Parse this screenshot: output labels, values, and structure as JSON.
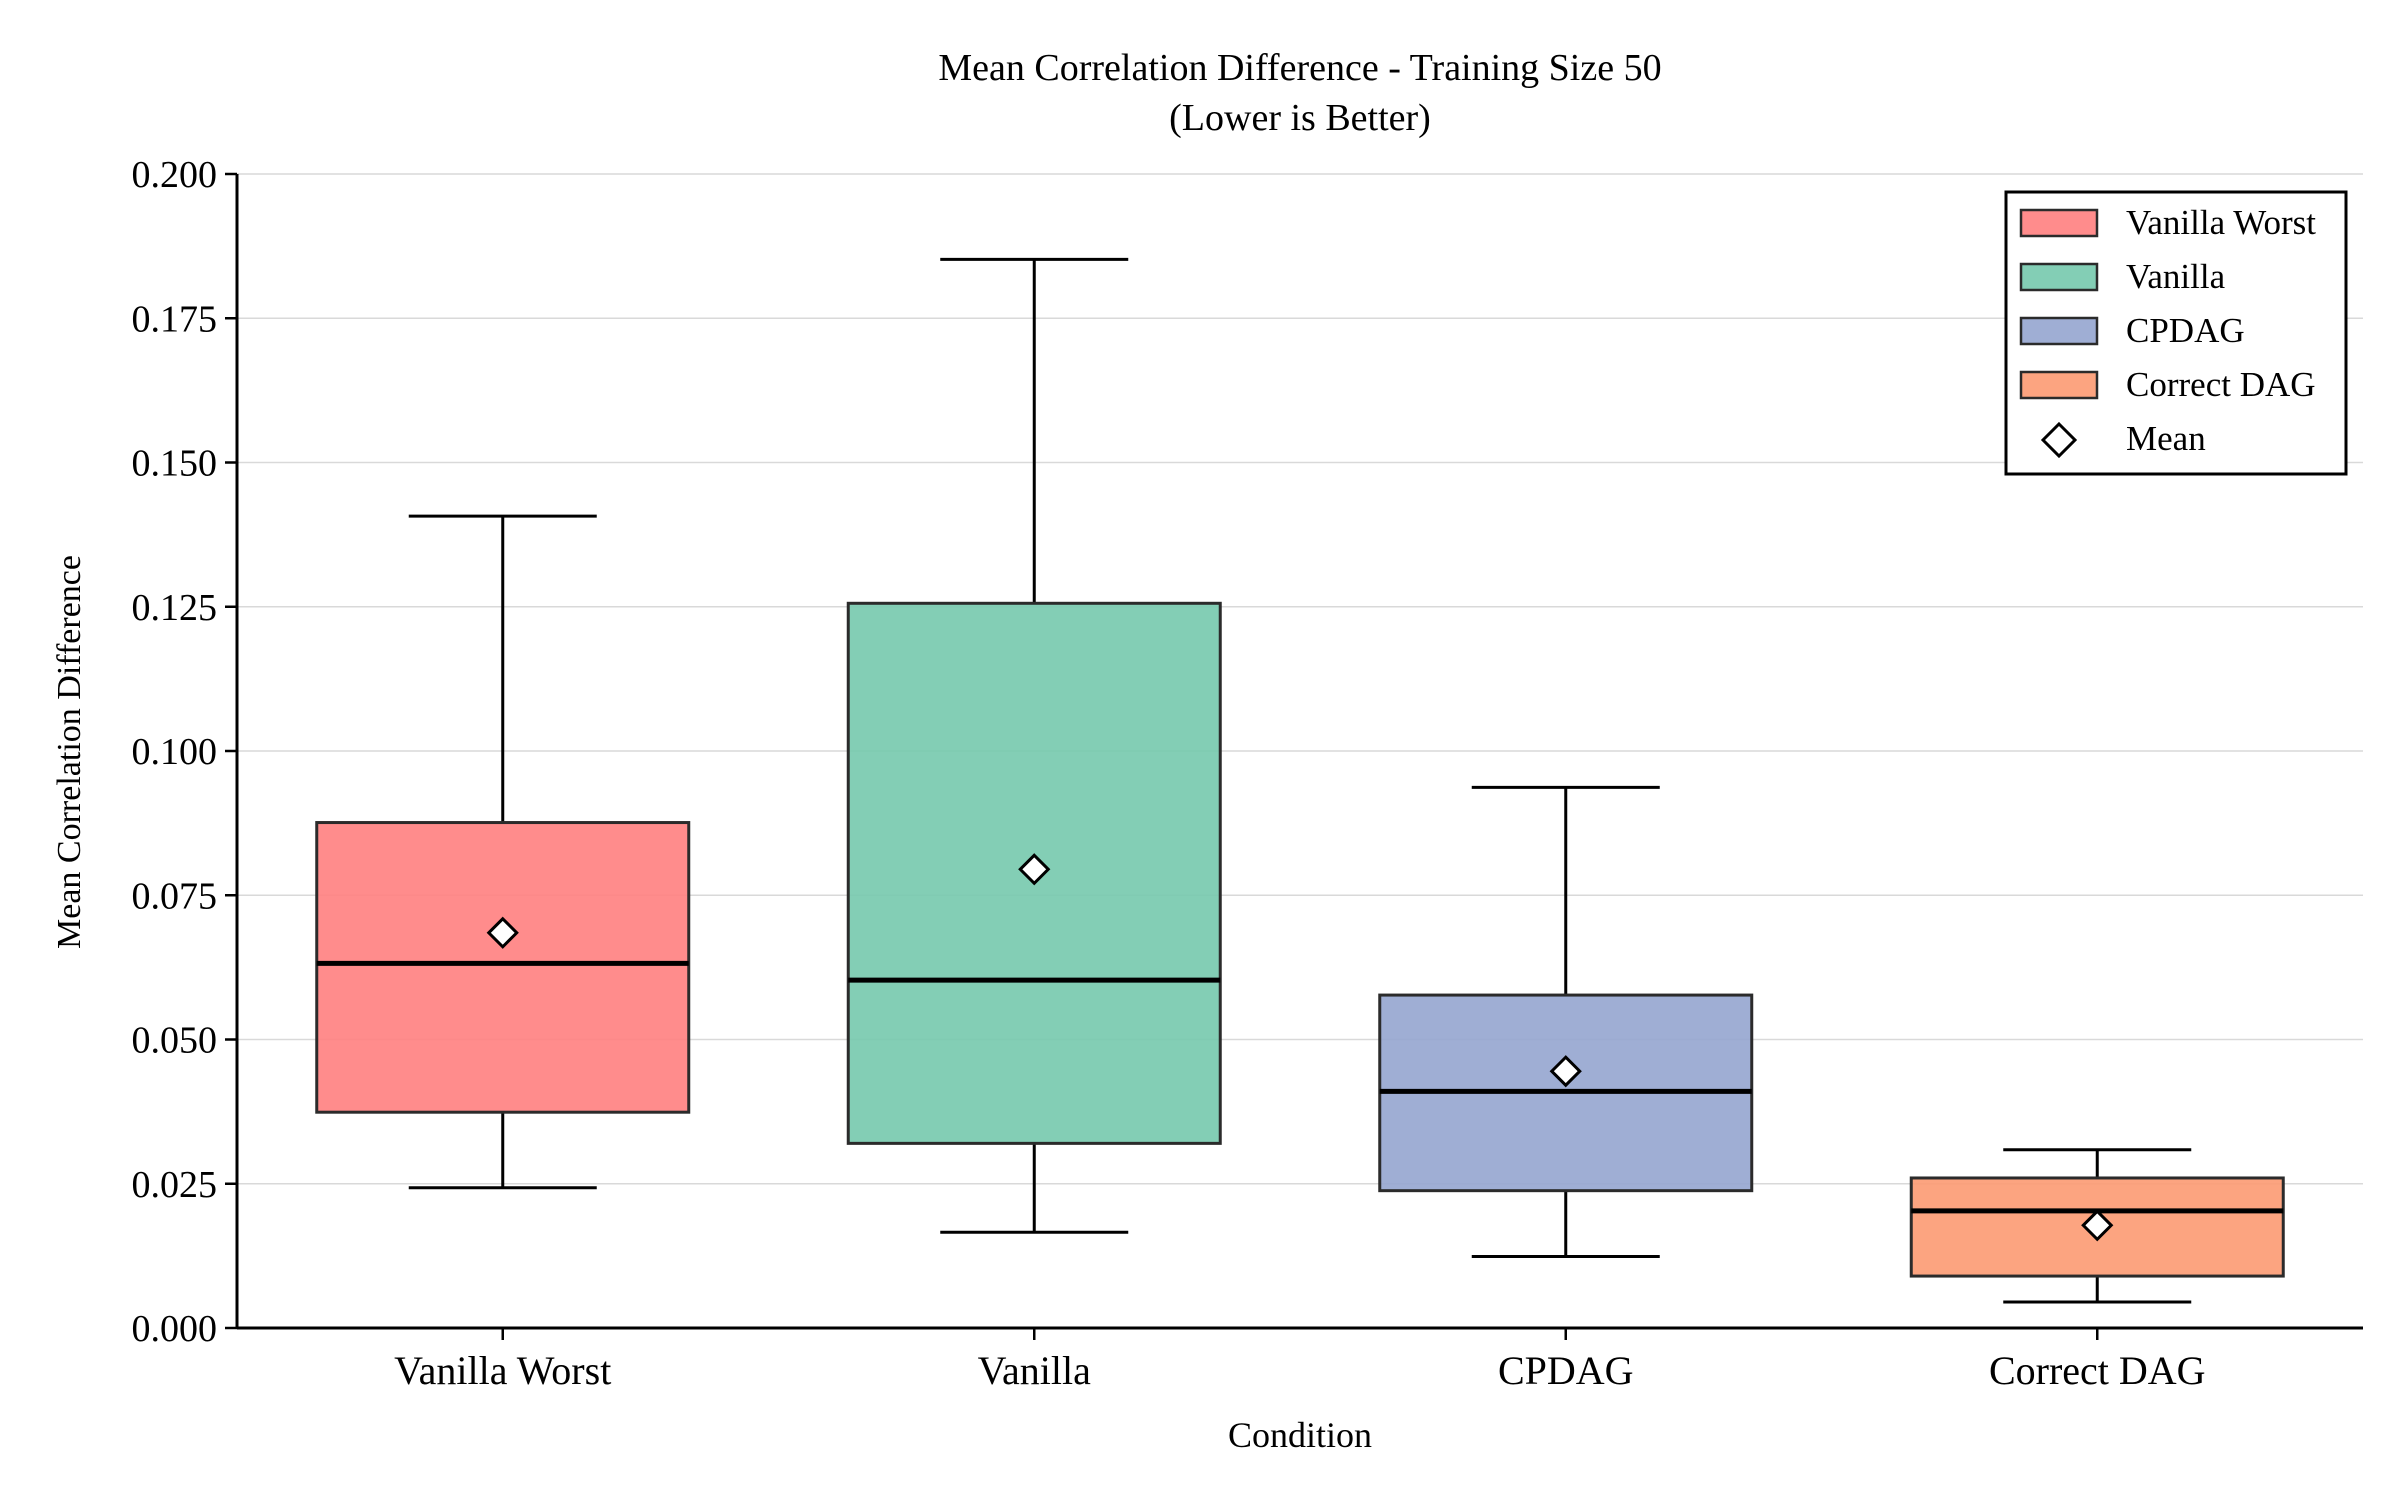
{
  "chart_data": {
    "type": "box",
    "title": "Mean Correlation Difference - Training Size 50",
    "subtitle": "(Lower is Better)",
    "xlabel": "Condition",
    "ylabel": "Mean Correlation Difference",
    "ylim": [
      0,
      0.2
    ],
    "yticks": [
      "0.000",
      "0.025",
      "0.050",
      "0.075",
      "0.100",
      "0.125",
      "0.150",
      "0.175",
      "0.200"
    ],
    "grid": "horizontal",
    "legend_position": "top-right",
    "categories": [
      "Vanilla Worst",
      "Vanilla",
      "CPDAG",
      "Correct DAG"
    ],
    "series": [
      {
        "name": "Vanilla Worst",
        "color": "#ff7f7f",
        "whisker_low": 0.0243,
        "q1": 0.0374,
        "median": 0.0632,
        "q3": 0.0876,
        "whisker_high": 0.1407,
        "mean": 0.0685
      },
      {
        "name": "Vanilla",
        "color": "#76c9ad",
        "whisker_low": 0.0166,
        "q1": 0.032,
        "median": 0.0603,
        "q3": 0.1256,
        "whisker_high": 0.1852,
        "mean": 0.0795
      },
      {
        "name": "CPDAG",
        "color": "#95a5cf",
        "whisker_low": 0.0124,
        "q1": 0.0238,
        "median": 0.041,
        "q3": 0.0577,
        "whisker_high": 0.0937,
        "mean": 0.0445
      },
      {
        "name": "Correct DAG",
        "color": "#fc9a72",
        "whisker_low": 0.0045,
        "q1": 0.009,
        "median": 0.0203,
        "q3": 0.026,
        "whisker_high": 0.0309,
        "mean": 0.0178
      }
    ],
    "legend": [
      "Vanilla Worst",
      "Vanilla",
      "CPDAG",
      "Correct DAG",
      "Mean"
    ]
  }
}
